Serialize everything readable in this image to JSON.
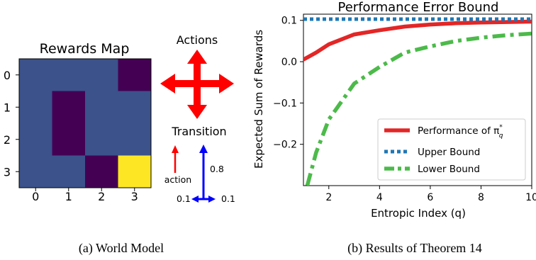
{
  "chart_data": [
    {
      "type": "heatmap",
      "title": "Rewards Map",
      "x_ticks": [
        "0",
        "1",
        "2",
        "3"
      ],
      "y_ticks": [
        "0",
        "1",
        "2",
        "3"
      ],
      "grid": [
        [
          0,
          0,
          0,
          -1
        ],
        [
          0,
          -1,
          0,
          0
        ],
        [
          0,
          -1,
          0,
          0
        ],
        [
          0,
          0,
          -1,
          1
        ]
      ],
      "colors": {
        "low": "#440154",
        "mid": "#3b528b",
        "high": "#fde725"
      },
      "caption": "(a)  World Model",
      "actions_label": "Actions",
      "transition_label": "Transition",
      "transition": {
        "action_label": "action",
        "forward_prob": "0.8",
        "left_prob": "0.1",
        "right_prob": "0.1"
      },
      "arrow_colors": {
        "actions": "#ff0000",
        "action": "#ff0000",
        "transition": "#0000ff"
      }
    },
    {
      "type": "line",
      "title": "Performance Error Bound",
      "xlabel": "Entropic Index (q)",
      "ylabel": "Expected Sum of Rewards",
      "xlim": [
        1,
        10
      ],
      "ylim": [
        -0.3,
        0.115
      ],
      "x_ticks": [
        2,
        4,
        6,
        8,
        10
      ],
      "y_ticks": [
        0.1,
        0.0,
        -0.1,
        -0.2
      ],
      "y_tick_labels": [
        "0.1",
        "0.0",
        "−0.1",
        "−0.2"
      ],
      "grid": false,
      "legend_position": "lower-right",
      "series": [
        {
          "name": "Performance of π",
          "name_sup": "*",
          "name_sub": "q",
          "color": "#e32626",
          "style": "solid",
          "x": [
            1,
            1.5,
            2,
            3,
            4,
            5,
            6,
            7,
            8,
            9,
            10
          ],
          "y": [
            0.005,
            0.022,
            0.042,
            0.066,
            0.076,
            0.085,
            0.09,
            0.093,
            0.095,
            0.096,
            0.097
          ]
        },
        {
          "name": "Upper Bound",
          "color": "#1f77b4",
          "style": "dotted",
          "x": [
            1,
            10
          ],
          "y": [
            0.103,
            0.103
          ]
        },
        {
          "name": "Lower Bound",
          "color": "#4cba4a",
          "style": "dashdot",
          "x": [
            1.15,
            1.5,
            2,
            3,
            4,
            5,
            6,
            7,
            8,
            9,
            10
          ],
          "y": [
            -0.3,
            -0.22,
            -0.14,
            -0.053,
            -0.013,
            0.022,
            0.037,
            0.05,
            0.058,
            0.064,
            0.068
          ]
        }
      ],
      "caption": "(b)  Results of Theorem 14"
    }
  ]
}
